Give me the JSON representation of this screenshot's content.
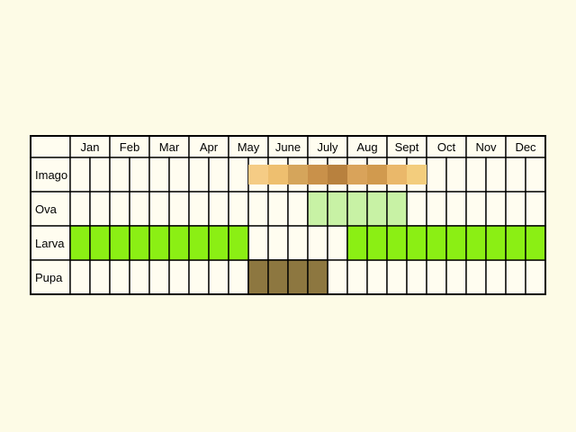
{
  "months": [
    "Jan",
    "Feb",
    "Mar",
    "Apr",
    "May",
    "June",
    "July",
    "Aug",
    "Sept",
    "Oct",
    "Nov",
    "Dec"
  ],
  "rows": [
    {
      "label": "Imago",
      "fills": [
        [
          null,
          null
        ],
        [
          null,
          null
        ],
        [
          null,
          null
        ],
        [
          null,
          null
        ],
        [
          null,
          "#f5cc85"
        ],
        [
          "#eebf6f",
          "#d5a55b"
        ],
        [
          "#c9914a",
          "#b8813e"
        ],
        [
          "#d9a35a",
          "#d19a4e"
        ],
        [
          "#eab86a",
          "#f3cd7d"
        ],
        [
          null,
          null
        ],
        [
          null,
          null
        ],
        [
          null,
          null
        ]
      ]
    },
    {
      "label": "Ova",
      "fills": [
        [
          null,
          null
        ],
        [
          null,
          null
        ],
        [
          null,
          null
        ],
        [
          null,
          null
        ],
        [
          null,
          null
        ],
        [
          null,
          null
        ],
        [
          "#c8f2a5",
          "#c8f2a5"
        ],
        [
          "#c8f2a5",
          "#c8f2a5"
        ],
        [
          "#c8f2a5",
          null
        ],
        [
          null,
          null
        ],
        [
          null,
          null
        ],
        [
          null,
          null
        ]
      ]
    },
    {
      "label": "Larva",
      "fills": [
        [
          "#8bef14",
          "#8bef14"
        ],
        [
          "#8bef14",
          "#8bef14"
        ],
        [
          "#8bef14",
          "#8bef14"
        ],
        [
          "#8bef14",
          "#8bef14"
        ],
        [
          "#8bef14",
          null
        ],
        [
          null,
          null
        ],
        [
          null,
          null
        ],
        [
          "#8bef14",
          "#8bef14"
        ],
        [
          "#8bef14",
          "#8bef14"
        ],
        [
          "#8bef14",
          "#8bef14"
        ],
        [
          "#8bef14",
          "#8bef14"
        ],
        [
          "#8bef14",
          "#8bef14"
        ]
      ]
    },
    {
      "label": "Pupa",
      "fills": [
        [
          null,
          null
        ],
        [
          null,
          null
        ],
        [
          null,
          null
        ],
        [
          null,
          null
        ],
        [
          null,
          "#8d7740"
        ],
        [
          "#8d7740",
          "#8d7740"
        ],
        [
          "#8d7740",
          null
        ],
        [
          null,
          null
        ],
        [
          null,
          null
        ],
        [
          null,
          null
        ],
        [
          null,
          null
        ],
        [
          null,
          null
        ]
      ]
    }
  ],
  "colors": {
    "background": "#fdfbe6",
    "empty_cell": "#fffdf0",
    "grid_line": "#000000"
  }
}
